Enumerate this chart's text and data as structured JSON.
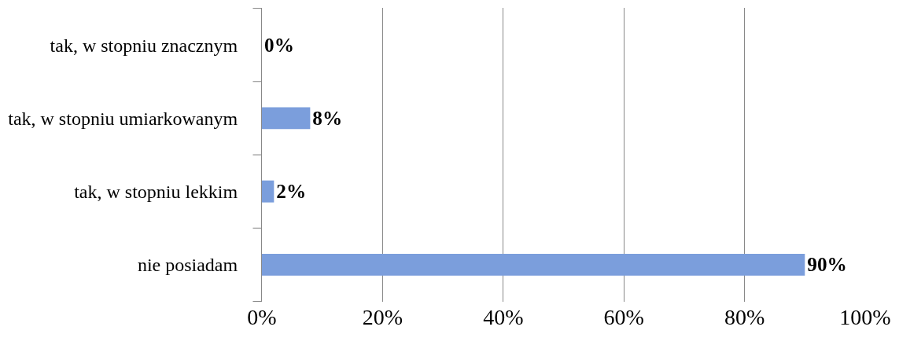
{
  "chart_data": {
    "type": "bar",
    "orientation": "horizontal",
    "categories": [
      "tak, w stopniu znacznym",
      "tak, w stopniu umiarkowanym",
      "tak, w stopniu lekkim",
      "nie posiadam"
    ],
    "values": [
      0,
      8,
      2,
      90
    ],
    "value_labels": [
      "0%",
      "8%",
      "2%",
      "90%"
    ],
    "color": "#7b9edc",
    "xlim": [
      0,
      100
    ],
    "xticks": [
      {
        "value": 0,
        "label": "0%"
      },
      {
        "value": 20,
        "label": "20%"
      },
      {
        "value": 40,
        "label": "40%"
      },
      {
        "value": 60,
        "label": "60%"
      },
      {
        "value": 80,
        "label": "80%"
      },
      {
        "value": 100,
        "label": "100%"
      }
    ],
    "grid": "x",
    "legend": false
  }
}
